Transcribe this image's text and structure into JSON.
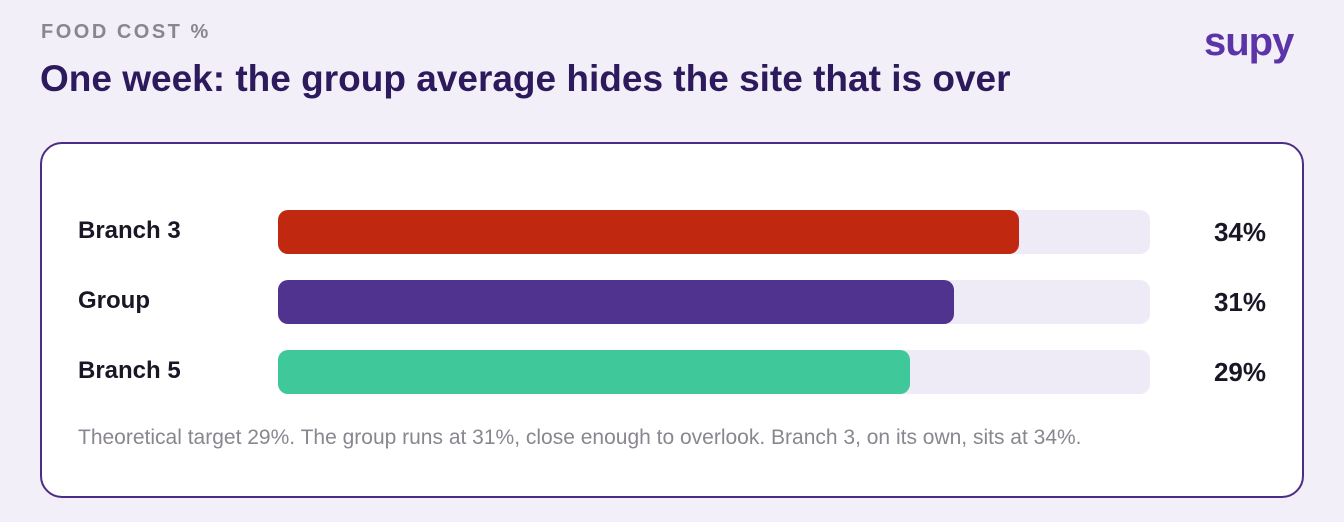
{
  "chart_data": {
    "type": "bar",
    "orientation": "horizontal",
    "eyebrow": "FOOD COST %",
    "title": "One week: the group average hides the site that is over",
    "logo": "supy",
    "categories": [
      "Branch 3",
      "Group",
      "Branch 5"
    ],
    "values": [
      34,
      31,
      29
    ],
    "value_labels": [
      "34%",
      "31%",
      "29%"
    ],
    "colors": [
      "#c12810",
      "#50328f",
      "#3fc899"
    ],
    "xlim": [
      0,
      40
    ],
    "note": "Theoretical target 29%. The group runs at 31%, close enough to overlook. Branch 3, on its own, sits at 34%."
  }
}
